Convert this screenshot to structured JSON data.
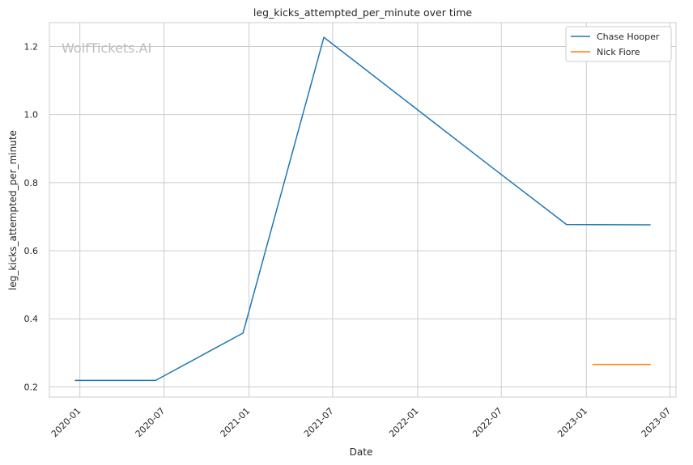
{
  "chart_data": {
    "type": "line",
    "title": "leg_kicks_attempted_per_minute over time",
    "xlabel": "Date",
    "ylabel": "leg_kicks_attempted_per_minute",
    "watermark": "WolfTickets.AI",
    "x_ticks": [
      "2020-01",
      "2020-07",
      "2021-01",
      "2021-07",
      "2022-01",
      "2022-07",
      "2023-01",
      "2023-07"
    ],
    "y_ticks": [
      "0.2",
      "0.4",
      "0.6",
      "0.8",
      "1.0",
      "1.2"
    ],
    "xlim": [
      "2019-10-27",
      "2023-07-14"
    ],
    "ylim": [
      0.17,
      1.27
    ],
    "grid": true,
    "legend_position": "top-right",
    "series": [
      {
        "name": "Chase Hooper",
        "color": "#1f77b4",
        "points": [
          {
            "x": "2019-12-21",
            "y": 0.219
          },
          {
            "x": "2020-06-13",
            "y": 0.219
          },
          {
            "x": "2020-12-19",
            "y": 0.358
          },
          {
            "x": "2021-06-12",
            "y": 1.227
          },
          {
            "x": "2022-06-01",
            "y": 0.855
          },
          {
            "x": "2022-11-19",
            "y": 0.677
          },
          {
            "x": "2023-05-20",
            "y": 0.676
          }
        ]
      },
      {
        "name": "Nick Fiore",
        "color": "#ff7f0e",
        "points": [
          {
            "x": "2023-01-14",
            "y": 0.266
          },
          {
            "x": "2023-05-20",
            "y": 0.266
          }
        ]
      }
    ]
  }
}
